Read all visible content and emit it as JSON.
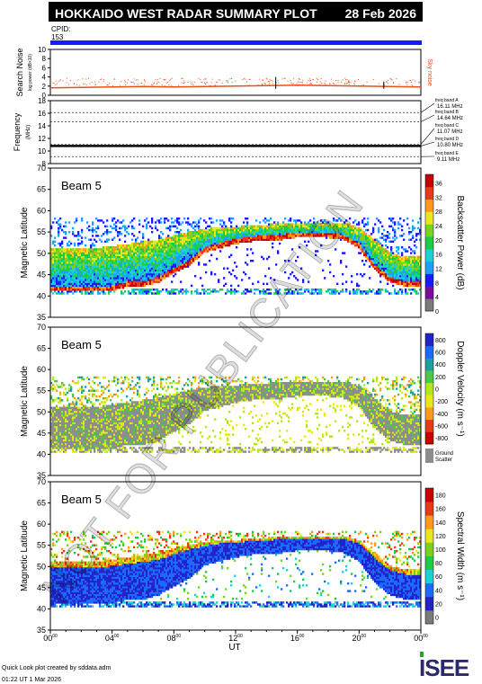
{
  "header": {
    "title": "HOKKAIDO WEST RADAR SUMMARY PLOT",
    "date": "28 Feb 2026",
    "cpid_label": "CPID:",
    "cpid_value": "153"
  },
  "footer": {
    "credit": "Quick Look plot created by sddata.adm",
    "timestamp": "01:22 UT 1 Mar 2026",
    "logo_text": "ISEE"
  },
  "watermark": "NOT FOR PUBLICATION",
  "colors": {
    "cpid_bar": "#1a1aff",
    "noise_trace": "#e8501a",
    "ground_scatter": "#8c8c8c",
    "radar_blue": "#2323c8",
    "radar_green": "#2ca02c",
    "radar_yellow": "#e6e61a",
    "radar_red": "#d62020"
  },
  "chart_data": [
    {
      "type": "line",
      "panel": "search-noise",
      "ylabel": "Search Noise",
      "ylabel_unit": "log power (dB×10)",
      "ylim": [
        0,
        10
      ],
      "yticks": [
        "0",
        "2",
        "4",
        "6",
        "8",
        "10"
      ],
      "legend": "Sky noise",
      "x_hours": [
        0,
        2,
        4,
        6,
        8,
        10,
        12,
        14,
        16,
        18,
        20,
        22,
        24
      ],
      "values": [
        1.6,
        1.7,
        1.8,
        1.9,
        1.8,
        1.9,
        2.0,
        2.1,
        2.2,
        2.1,
        2.0,
        1.9,
        1.8
      ]
    },
    {
      "type": "line",
      "panel": "frequency",
      "ylabel": "Frequency",
      "ylabel_unit": "(MHz)",
      "ylim": [
        8,
        18
      ],
      "yticks": [
        "8",
        "10",
        "12",
        "14",
        "16",
        "18"
      ],
      "bands": [
        {
          "name": "freq band A",
          "value": "16.11 MHz"
        },
        {
          "name": "freq band B",
          "value": "14.64 MHz"
        },
        {
          "name": "freq band C",
          "value": "11.07 MHz"
        },
        {
          "name": "freq band D",
          "value": "10.80 MHz"
        },
        {
          "name": "freq band E",
          "value": "9.11 MHz"
        }
      ],
      "operating_frequency_mhz": 10.8
    },
    {
      "type": "heatmap",
      "panel": "backscatter-power",
      "beam_label": "Beam  5",
      "ylabel": "Magnetic Latitude",
      "ylim": [
        35,
        70
      ],
      "yticks": [
        "35",
        "40",
        "45",
        "50",
        "55",
        "60",
        "65",
        "70"
      ],
      "colorbar_label": "Backscatter Power (dB)",
      "colorbar_ticks": [
        "0",
        "4",
        "8",
        "12",
        "16",
        "20",
        "24",
        "28",
        "32",
        "36"
      ],
      "colorbar_colors": [
        "#7a7a7a",
        "#7a0d99",
        "#1a1aff",
        "#1aa0ff",
        "#1ad2d2",
        "#1acc4a",
        "#7ad21a",
        "#e6e61a",
        "#ff9a1a",
        "#e83a1a",
        "#c80000"
      ]
    },
    {
      "type": "heatmap",
      "panel": "doppler-velocity",
      "beam_label": "Beam  5",
      "ylabel": "Magnetic Latitude",
      "ylim": [
        35,
        70
      ],
      "yticks": [
        "35",
        "40",
        "45",
        "50",
        "55",
        "60",
        "65",
        "70"
      ],
      "colorbar_label": "Doppler Velocity (m s⁻¹)",
      "colorbar_ticks": [
        "-800",
        "-600",
        "-400",
        "-200",
        "0",
        "200",
        "400",
        "600",
        "800"
      ],
      "colorbar_colors": [
        "#c80000",
        "#e83a1a",
        "#ff9a1a",
        "#e6e61a",
        "#b4e61a",
        "#4ac84a",
        "#1aa0a0",
        "#1a6aff",
        "#2323c8"
      ],
      "ground_scatter_label": [
        "Ground",
        "Scatter"
      ]
    },
    {
      "type": "heatmap",
      "panel": "spectral-width",
      "beam_label": "Beam  5",
      "ylabel": "Magnetic Latitude",
      "ylim": [
        35,
        70
      ],
      "yticks": [
        "35",
        "40",
        "45",
        "50",
        "55",
        "60",
        "65",
        "70"
      ],
      "colorbar_label": "Spectral Width (m s⁻¹)",
      "colorbar_ticks": [
        "0",
        "20",
        "40",
        "60",
        "80",
        "100",
        "120",
        "140",
        "160",
        "180"
      ],
      "colorbar_colors": [
        "#7a7a7a",
        "#2323c8",
        "#1a6aff",
        "#1ad2d2",
        "#1acc4a",
        "#7ad21a",
        "#e6e61a",
        "#ff9a1a",
        "#e83a1a",
        "#c80000"
      ]
    }
  ],
  "time_axis": {
    "xlabel": "UT",
    "ticks": [
      {
        "hh": "00",
        "mm": "00"
      },
      {
        "hh": "04",
        "mm": "00"
      },
      {
        "hh": "08",
        "mm": "00"
      },
      {
        "hh": "12",
        "mm": "00"
      },
      {
        "hh": "16",
        "mm": "00"
      },
      {
        "hh": "20",
        "mm": "00"
      },
      {
        "hh": "00",
        "mm": "00"
      }
    ]
  },
  "scatter_boundaries": {
    "x_hours": [
      0,
      1,
      2,
      3,
      4,
      5,
      6,
      7,
      8,
      9,
      10,
      11,
      12,
      13,
      14,
      15,
      16,
      17,
      18,
      19,
      20,
      21,
      22,
      23,
      24
    ],
    "lower_edge_mlat": [
      41,
      41,
      41,
      41,
      41,
      42,
      42,
      43,
      45,
      47,
      50,
      51,
      52,
      52.5,
      53,
      53,
      53.5,
      53.5,
      53.5,
      53,
      51,
      46,
      43,
      42,
      42
    ],
    "upper_edge_mlat": [
      51,
      51,
      51,
      51,
      51.5,
      52,
      52.5,
      53,
      54,
      55,
      55.5,
      56,
      56,
      56.5,
      56.5,
      57,
      57,
      57,
      57,
      57,
      56,
      53,
      50,
      49,
      49
    ],
    "low_band_mlat": [
      40,
      41.5
    ]
  }
}
